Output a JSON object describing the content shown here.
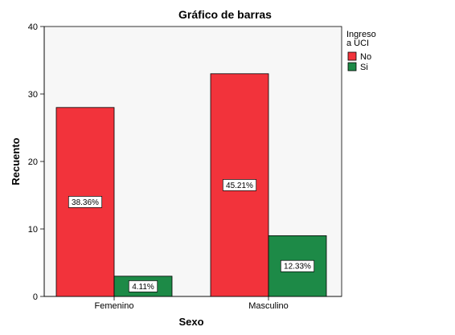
{
  "chart_data": {
    "type": "bar",
    "title": "Gráfico de barras",
    "xlabel": "Sexo",
    "ylabel": "Recuento",
    "categories": [
      "Femenino",
      "Masculino"
    ],
    "ylim": [
      0,
      40
    ],
    "yticks": [
      0,
      10,
      20,
      30,
      40
    ],
    "grid": false,
    "plot_background": "#f7f7f7",
    "legend": {
      "title": "Ingreso\na UCI",
      "title_lines": [
        "Ingreso",
        "a UCI"
      ],
      "placement": "right-top"
    },
    "series": [
      {
        "name": "No",
        "color": "#f2333b",
        "values": [
          28,
          33
        ],
        "labels": [
          "38.36%",
          "45.21%"
        ]
      },
      {
        "name": "Si",
        "color": "#1d8a47",
        "values": [
          3,
          9
        ],
        "labels": [
          "4.11%",
          "12.33%"
        ]
      }
    ]
  }
}
